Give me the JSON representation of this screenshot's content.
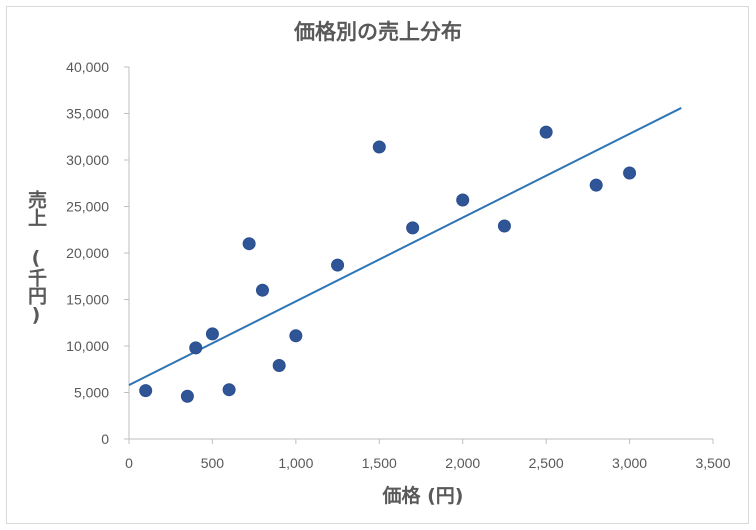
{
  "chart_data": {
    "type": "scatter",
    "title": "価格別の売上分布",
    "xlabel": "価格 (円)",
    "ylabel": "売上 (千円)",
    "xlim": [
      0,
      3500
    ],
    "ylim": [
      0,
      40000
    ],
    "x_ticks": [
      "0",
      "500",
      "1,000",
      "1,500",
      "2,000",
      "2,500",
      "3,000",
      "3,500"
    ],
    "y_ticks": [
      "0",
      "5,000",
      "10,000",
      "15,000",
      "20,000",
      "25,000",
      "30,000",
      "35,000",
      "40,000"
    ],
    "grid": false,
    "legend": "none",
    "marker_color": "#2f5597",
    "trendline_color": "#2e75b6",
    "series": [
      {
        "name": "売上",
        "points": [
          {
            "x": 100,
            "y": 5200
          },
          {
            "x": 350,
            "y": 4600
          },
          {
            "x": 400,
            "y": 9800
          },
          {
            "x": 500,
            "y": 11300
          },
          {
            "x": 600,
            "y": 5300
          },
          {
            "x": 720,
            "y": 21000
          },
          {
            "x": 800,
            "y": 16000
          },
          {
            "x": 900,
            "y": 7900
          },
          {
            "x": 1000,
            "y": 11100
          },
          {
            "x": 1250,
            "y": 18700
          },
          {
            "x": 1500,
            "y": 31400
          },
          {
            "x": 1700,
            "y": 22700
          },
          {
            "x": 2000,
            "y": 25700
          },
          {
            "x": 2250,
            "y": 22900
          },
          {
            "x": 2500,
            "y": 33000
          },
          {
            "x": 2800,
            "y": 27300
          },
          {
            "x": 3000,
            "y": 28600
          }
        ]
      }
    ],
    "trendline": {
      "type": "linear",
      "x0": 0,
      "y0": 5800,
      "x1": 3310,
      "y1": 35600
    }
  }
}
